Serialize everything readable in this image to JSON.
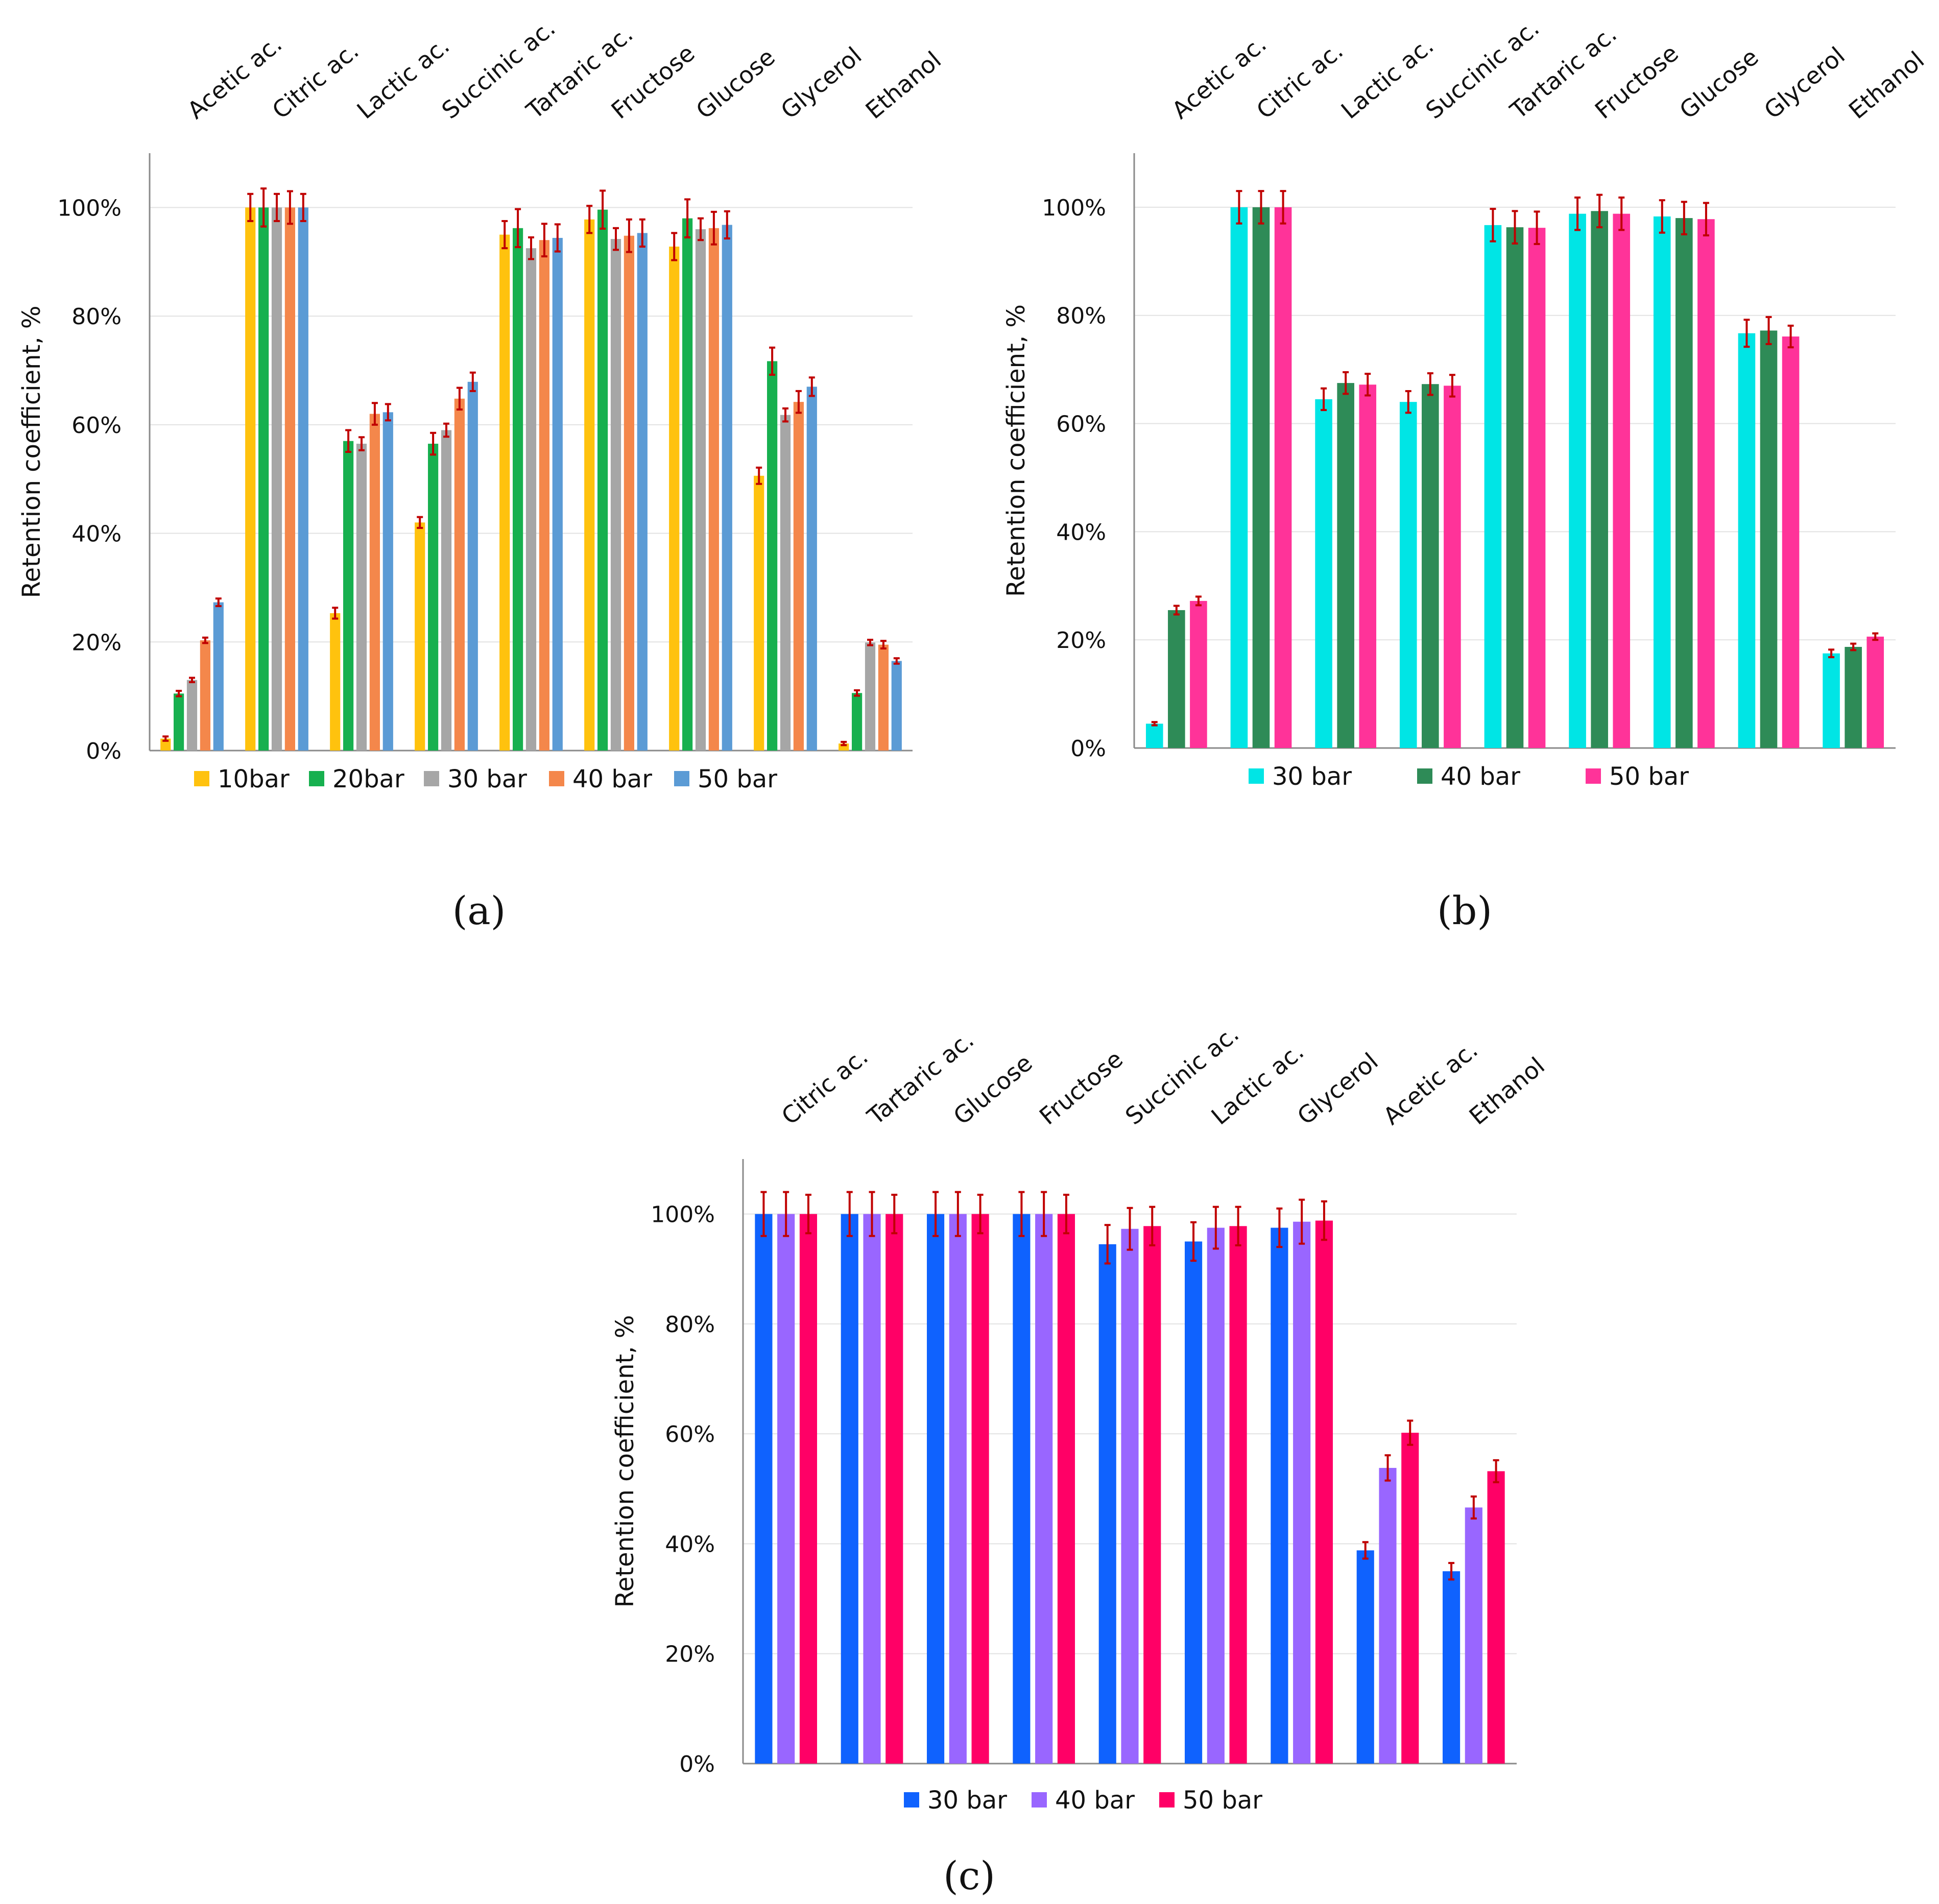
{
  "figure": {
    "caption_labels": [
      "(a)",
      "(b)",
      "(c)"
    ],
    "colors": {
      "error_bar": "#c00000",
      "grid": "#e2e2e2",
      "axis": "#8a8a8a"
    }
  },
  "chart_data": [
    {
      "panel": "a",
      "type": "bar",
      "title": "",
      "xlabel": "",
      "ylabel": "Retention coefficient, %",
      "ylim": [
        0,
        110
      ],
      "yticks": [
        0,
        20,
        40,
        60,
        80,
        100
      ],
      "yticks_labels": [
        "0%",
        "20%",
        "40%",
        "60%",
        "80%",
        "100%"
      ],
      "grid": true,
      "legend_position": "bottom",
      "categories": [
        "Acetic ac.",
        "Citric ac.",
        "Lactic ac.",
        "Succinic ac.",
        "Tartaric ac.",
        "Fructose",
        "Glucose",
        "Glycerol",
        "Ethanol"
      ],
      "series": [
        {
          "name": "10bar",
          "color": "#ffc20e",
          "values": [
            2.2,
            100,
            25.3,
            42,
            95,
            97.8,
            92.8,
            50.6,
            1.3
          ],
          "errors": [
            0.4,
            2.5,
            1,
            1,
            2.5,
            2.5,
            2.5,
            1.5,
            0.3
          ]
        },
        {
          "name": "20bar",
          "color": "#17b04f",
          "values": [
            10.5,
            100,
            57,
            56.5,
            96.2,
            99.6,
            98,
            71.7,
            10.6
          ],
          "errors": [
            0.5,
            3.5,
            2,
            2,
            3.5,
            3.5,
            3.5,
            2.5,
            0.5
          ]
        },
        {
          "name": "30 bar",
          "color": "#a6a6a6",
          "values": [
            13,
            100,
            56.5,
            59,
            92.5,
            94.2,
            96,
            61.8,
            19.9
          ],
          "errors": [
            0.4,
            2.5,
            1.2,
            1.2,
            2,
            2,
            2,
            1.2,
            0.5
          ]
        },
        {
          "name": "40 bar",
          "color": "#f4874b",
          "values": [
            20.3,
            100,
            62,
            64.8,
            94,
            94.8,
            96.2,
            64.2,
            19.5
          ],
          "errors": [
            0.5,
            3,
            2,
            2,
            3,
            3,
            3,
            2,
            0.7
          ]
        },
        {
          "name": "50 bar",
          "color": "#5b9bd5",
          "values": [
            27.3,
            100,
            62.3,
            67.9,
            94.4,
            95.3,
            96.8,
            67,
            16.5
          ],
          "errors": [
            0.7,
            2.5,
            1.5,
            1.7,
            2.5,
            2.5,
            2.5,
            1.7,
            0.5
          ]
        }
      ]
    },
    {
      "panel": "b",
      "type": "bar",
      "title": "",
      "xlabel": "",
      "ylabel": "Retention coefficient, %",
      "ylim": [
        0,
        110
      ],
      "yticks": [
        0,
        20,
        40,
        60,
        80,
        100
      ],
      "yticks_labels": [
        "0%",
        "20%",
        "40%",
        "60%",
        "80%",
        "100%"
      ],
      "grid": true,
      "legend_position": "bottom",
      "categories": [
        "Acetic ac.",
        "Citric ac.",
        "Lactic ac.",
        "Succinic ac.",
        "Tartaric ac.",
        "Fructose",
        "Glucose",
        "Glycerol",
        "Ethanol"
      ],
      "series": [
        {
          "name": "30 bar",
          "color": "#00e5e5",
          "values": [
            4.5,
            100,
            64.5,
            64,
            96.7,
            98.8,
            98.3,
            76.7,
            17.5
          ],
          "errors": [
            0.3,
            3,
            2,
            2,
            3,
            3,
            3,
            2.5,
            0.7
          ]
        },
        {
          "name": "40 bar",
          "color": "#2e8b57",
          "values": [
            25.5,
            100,
            67.5,
            67.3,
            96.3,
            99.3,
            98,
            77.2,
            18.7
          ],
          "errors": [
            0.8,
            3,
            2,
            2,
            3,
            3,
            3,
            2.5,
            0.6
          ]
        },
        {
          "name": "50 bar",
          "color": "#ff3399",
          "values": [
            27.2,
            100,
            67.2,
            67,
            96.2,
            98.8,
            97.8,
            76.1,
            20.6
          ],
          "errors": [
            0.8,
            3,
            2,
            2,
            3,
            3,
            3,
            2,
            0.6
          ]
        }
      ]
    },
    {
      "panel": "c",
      "type": "bar",
      "title": "",
      "xlabel": "",
      "ylabel": "Retention coefficient, %",
      "ylim": [
        0,
        110
      ],
      "yticks": [
        0,
        20,
        40,
        60,
        80,
        100
      ],
      "yticks_labels": [
        "0%",
        "20%",
        "40%",
        "60%",
        "80%",
        "100%"
      ],
      "grid": true,
      "legend_position": "bottom",
      "categories": [
        "Citric ac.",
        "Tartaric ac.",
        "Glucose",
        "Fructose",
        "Succinic ac.",
        "Lactic ac.",
        "Glycerol",
        "Acetic ac.",
        "Ethanol"
      ],
      "series": [
        {
          "name": "30 bar",
          "color": "#0f62fe",
          "values": [
            100,
            100,
            100,
            100,
            94.5,
            95,
            97.5,
            38.8,
            35
          ],
          "errors": [
            4,
            4,
            4,
            4,
            3.5,
            3.5,
            3.5,
            1.5,
            1.5
          ]
        },
        {
          "name": "40 bar",
          "color": "#9966ff",
          "values": [
            100,
            100,
            100,
            100,
            97.3,
            97.5,
            98.6,
            53.8,
            46.6
          ],
          "errors": [
            4,
            4,
            4,
            4,
            3.8,
            3.8,
            4,
            2.3,
            2
          ]
        },
        {
          "name": "50 bar",
          "color": "#ff0066",
          "values": [
            100,
            100,
            100,
            100,
            97.8,
            97.8,
            98.8,
            60.2,
            53.2
          ],
          "errors": [
            3.5,
            3.5,
            3.5,
            3.5,
            3.5,
            3.5,
            3.5,
            2.2,
            2
          ]
        }
      ]
    }
  ]
}
